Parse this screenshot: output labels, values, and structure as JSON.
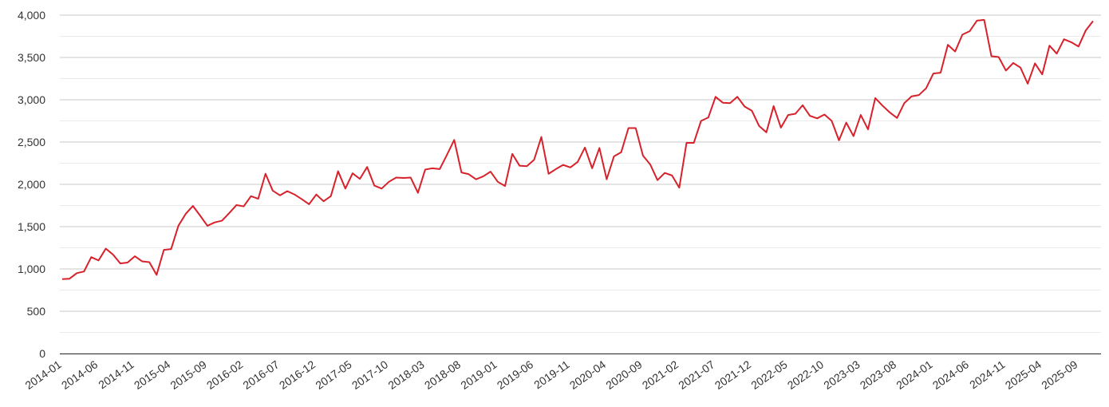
{
  "chart_data": {
    "type": "line",
    "categories": [
      "2014-01",
      null,
      null,
      null,
      null,
      "2014-06",
      null,
      null,
      null,
      null,
      "2014-11",
      null,
      null,
      null,
      null,
      "2015-04",
      null,
      null,
      null,
      null,
      "2015-09",
      null,
      null,
      null,
      null,
      "2016-02",
      null,
      null,
      null,
      null,
      "2016-07",
      null,
      null,
      null,
      null,
      "2016-12",
      null,
      null,
      null,
      null,
      "2017-05",
      null,
      null,
      null,
      null,
      "2017-10",
      null,
      null,
      null,
      null,
      "2018-03",
      null,
      null,
      null,
      null,
      "2018-08",
      null,
      null,
      null,
      null,
      "2019-01",
      null,
      null,
      null,
      null,
      "2019-06",
      null,
      null,
      null,
      null,
      "2019-11",
      null,
      null,
      null,
      null,
      "2020-04",
      null,
      null,
      null,
      null,
      "2020-09",
      null,
      null,
      null,
      null,
      "2021-02",
      null,
      null,
      null,
      null,
      "2021-07",
      null,
      null,
      null,
      null,
      "2021-12",
      null,
      null,
      null,
      null,
      "2022-05",
      null,
      null,
      null,
      null,
      "2022-10",
      null,
      null,
      null,
      null,
      "2023-03",
      null,
      null,
      null,
      null,
      "2023-08",
      null,
      null,
      null,
      null,
      "2024-01",
      null,
      null,
      null,
      null,
      "2024-06",
      null,
      null,
      null,
      null,
      "2024-11",
      null,
      null,
      null,
      null,
      "2025-04",
      null,
      null,
      null,
      null,
      "2025-09",
      null,
      null
    ],
    "series": [
      {
        "color": "#d7212b",
        "values": [
          880,
          885,
          950,
          970,
          1140,
          1100,
          1240,
          1170,
          1065,
          1075,
          1150,
          1090,
          1080,
          930,
          1225,
          1235,
          1510,
          1650,
          1745,
          1630,
          1510,
          1550,
          1570,
          1660,
          1755,
          1740,
          1860,
          1830,
          2125,
          1925,
          1870,
          1920,
          1880,
          1825,
          1765,
          1880,
          1800,
          1860,
          2155,
          1950,
          2130,
          2065,
          2205,
          1985,
          1950,
          2030,
          2080,
          2075,
          2080,
          1900,
          2175,
          2190,
          2180,
          2350,
          2525,
          2140,
          2120,
          2060,
          2095,
          2150,
          2030,
          1980,
          2360,
          2220,
          2215,
          2290,
          2560,
          2125,
          2180,
          2230,
          2200,
          2265,
          2435,
          2190,
          2430,
          2060,
          2330,
          2380,
          2665,
          2665,
          2340,
          2235,
          2050,
          2135,
          2105,
          1960,
          2490,
          2490,
          2750,
          2790,
          3035,
          2965,
          2960,
          3035,
          2920,
          2870,
          2690,
          2615,
          2925,
          2670,
          2820,
          2835,
          2935,
          2810,
          2780,
          2825,
          2750,
          2520,
          2730,
          2570,
          2820,
          2650,
          3020,
          2930,
          2850,
          2785,
          2960,
          3040,
          3055,
          3135,
          3310,
          3320,
          3650,
          3570,
          3770,
          3810,
          3935,
          3945,
          3515,
          3505,
          3345,
          3435,
          3380,
          3190,
          3430,
          3300,
          3640,
          3545,
          3715,
          3680,
          3630,
          3820,
          3930
        ]
      }
    ],
    "ylim": [
      0,
      4000
    ],
    "yticks": [
      0,
      500,
      {
        "value": 1000,
        "label": "1,000"
      },
      {
        "value": 1500,
        "label": "1,500"
      },
      {
        "value": 2000,
        "label": "2,000"
      },
      {
        "value": 2500,
        "label": "2,500"
      },
      {
        "value": 3000,
        "label": "3,000"
      },
      {
        "value": 3500,
        "label": "3,500"
      },
      {
        "value": 4000,
        "label": "4,000"
      }
    ],
    "grid": true
  }
}
